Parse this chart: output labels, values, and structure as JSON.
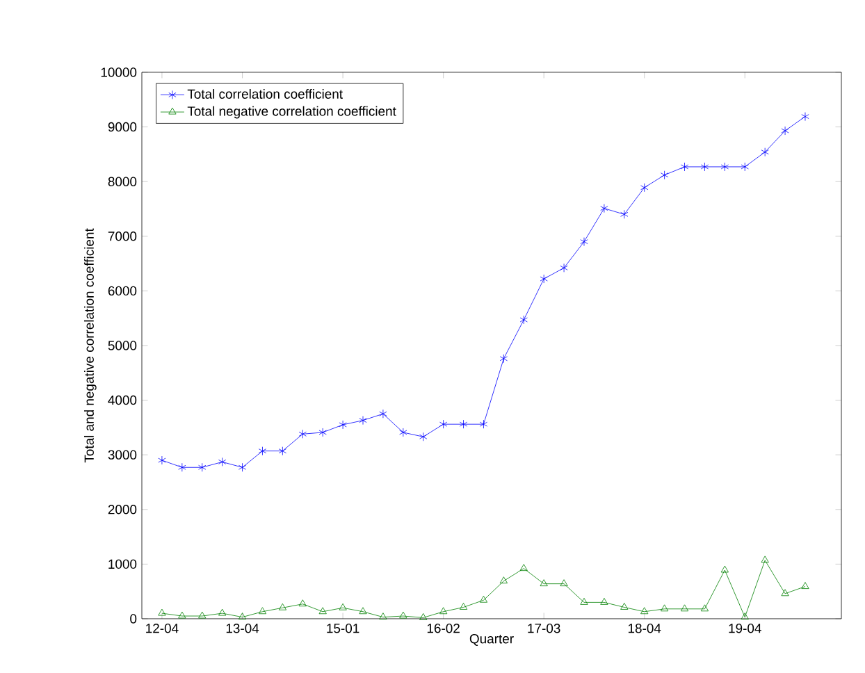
{
  "chart_data": {
    "type": "line",
    "xlabel": "Quarter",
    "ylabel": "Total and negative correlation coefficient",
    "categories": [
      "12-04",
      null,
      null,
      null,
      "13-04",
      null,
      null,
      null,
      null,
      "15-01",
      null,
      null,
      null,
      null,
      "16-02",
      null,
      null,
      null,
      null,
      "17-03",
      null,
      null,
      null,
      null,
      "18-04",
      null,
      null,
      null,
      null,
      "19-04",
      null,
      null,
      null
    ],
    "series": [
      {
        "name": "Total correlation coefficient",
        "color": "#0000ff",
        "marker": "cross",
        "values": [
          2900,
          2770,
          2770,
          2870,
          2770,
          3070,
          3070,
          3380,
          3410,
          3550,
          3630,
          3750,
          3410,
          3330,
          3560,
          3560,
          3560,
          4760,
          5470,
          6220,
          6420,
          6900,
          7510,
          7400,
          7890,
          8120,
          8270,
          8270,
          8270,
          8270,
          8540,
          8930,
          9190
        ]
      },
      {
        "name": "Total negative correlation coefficient",
        "color": "#008000",
        "marker": "triangle",
        "values": [
          100,
          50,
          50,
          100,
          30,
          130,
          200,
          270,
          130,
          200,
          130,
          30,
          50,
          20,
          130,
          210,
          340,
          690,
          920,
          640,
          640,
          300,
          300,
          210,
          130,
          180,
          180,
          180,
          890,
          30,
          1070,
          460,
          590
        ]
      }
    ],
    "ylim": [
      0,
      10000
    ],
    "yticks": [
      0,
      1000,
      2000,
      3000,
      4000,
      5000,
      6000,
      7000,
      8000,
      9000,
      10000
    ],
    "grid": false,
    "legend": "top left",
    "line_style": "solid"
  }
}
